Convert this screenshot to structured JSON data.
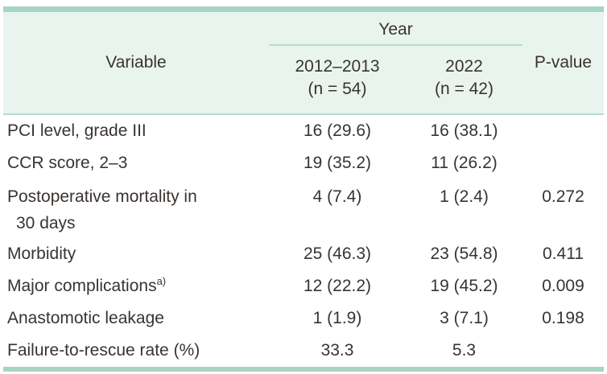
{
  "table": {
    "header": {
      "variable_label": "Variable",
      "year_group_label": "Year",
      "period1_label": "2012–2013",
      "period1_n": "(n = 54)",
      "period2_label": "2022",
      "period2_n": "(n = 42)",
      "pvalue_label": "P-value"
    },
    "rows": [
      {
        "variable": "PCI level, grade III",
        "variable_sup": "",
        "variable_line2": "",
        "y2012_2013": "16 (29.6)",
        "y2022": "16 (38.1)",
        "p": ""
      },
      {
        "variable": "CCR score, 2–3",
        "variable_sup": "",
        "variable_line2": "",
        "y2012_2013": "19 (35.2)",
        "y2022": "11 (26.2)",
        "p": ""
      },
      {
        "variable": "Postoperative mortality in",
        "variable_sup": "",
        "variable_line2": "30 days",
        "y2012_2013": "4 (7.4)",
        "y2022": "1 (2.4)",
        "p": "0.272"
      },
      {
        "variable": "Morbidity",
        "variable_sup": "",
        "variable_line2": "",
        "y2012_2013": "25 (46.3)",
        "y2022": "23 (54.8)",
        "p": "0.411"
      },
      {
        "variable": "Major complications",
        "variable_sup": "a)",
        "variable_line2": "",
        "y2012_2013": "12 (22.2)",
        "y2022": "19 (45.2)",
        "p": "0.009"
      },
      {
        "variable": "Anastomotic leakage",
        "variable_sup": "",
        "variable_line2": "",
        "y2012_2013": "1 (1.9)",
        "y2022": "3 (7.1)",
        "p": "0.198"
      },
      {
        "variable": "Failure-to-rescue rate (%)",
        "variable_sup": "",
        "variable_line2": "",
        "y2012_2013": "33.3",
        "y2022": "5.3",
        "p": ""
      }
    ],
    "colors": {
      "accent_bar": "#a8d4c5",
      "header_background": "#e9f4ef",
      "rule_line": "#b7dccd",
      "text": "#3a3330"
    }
  }
}
